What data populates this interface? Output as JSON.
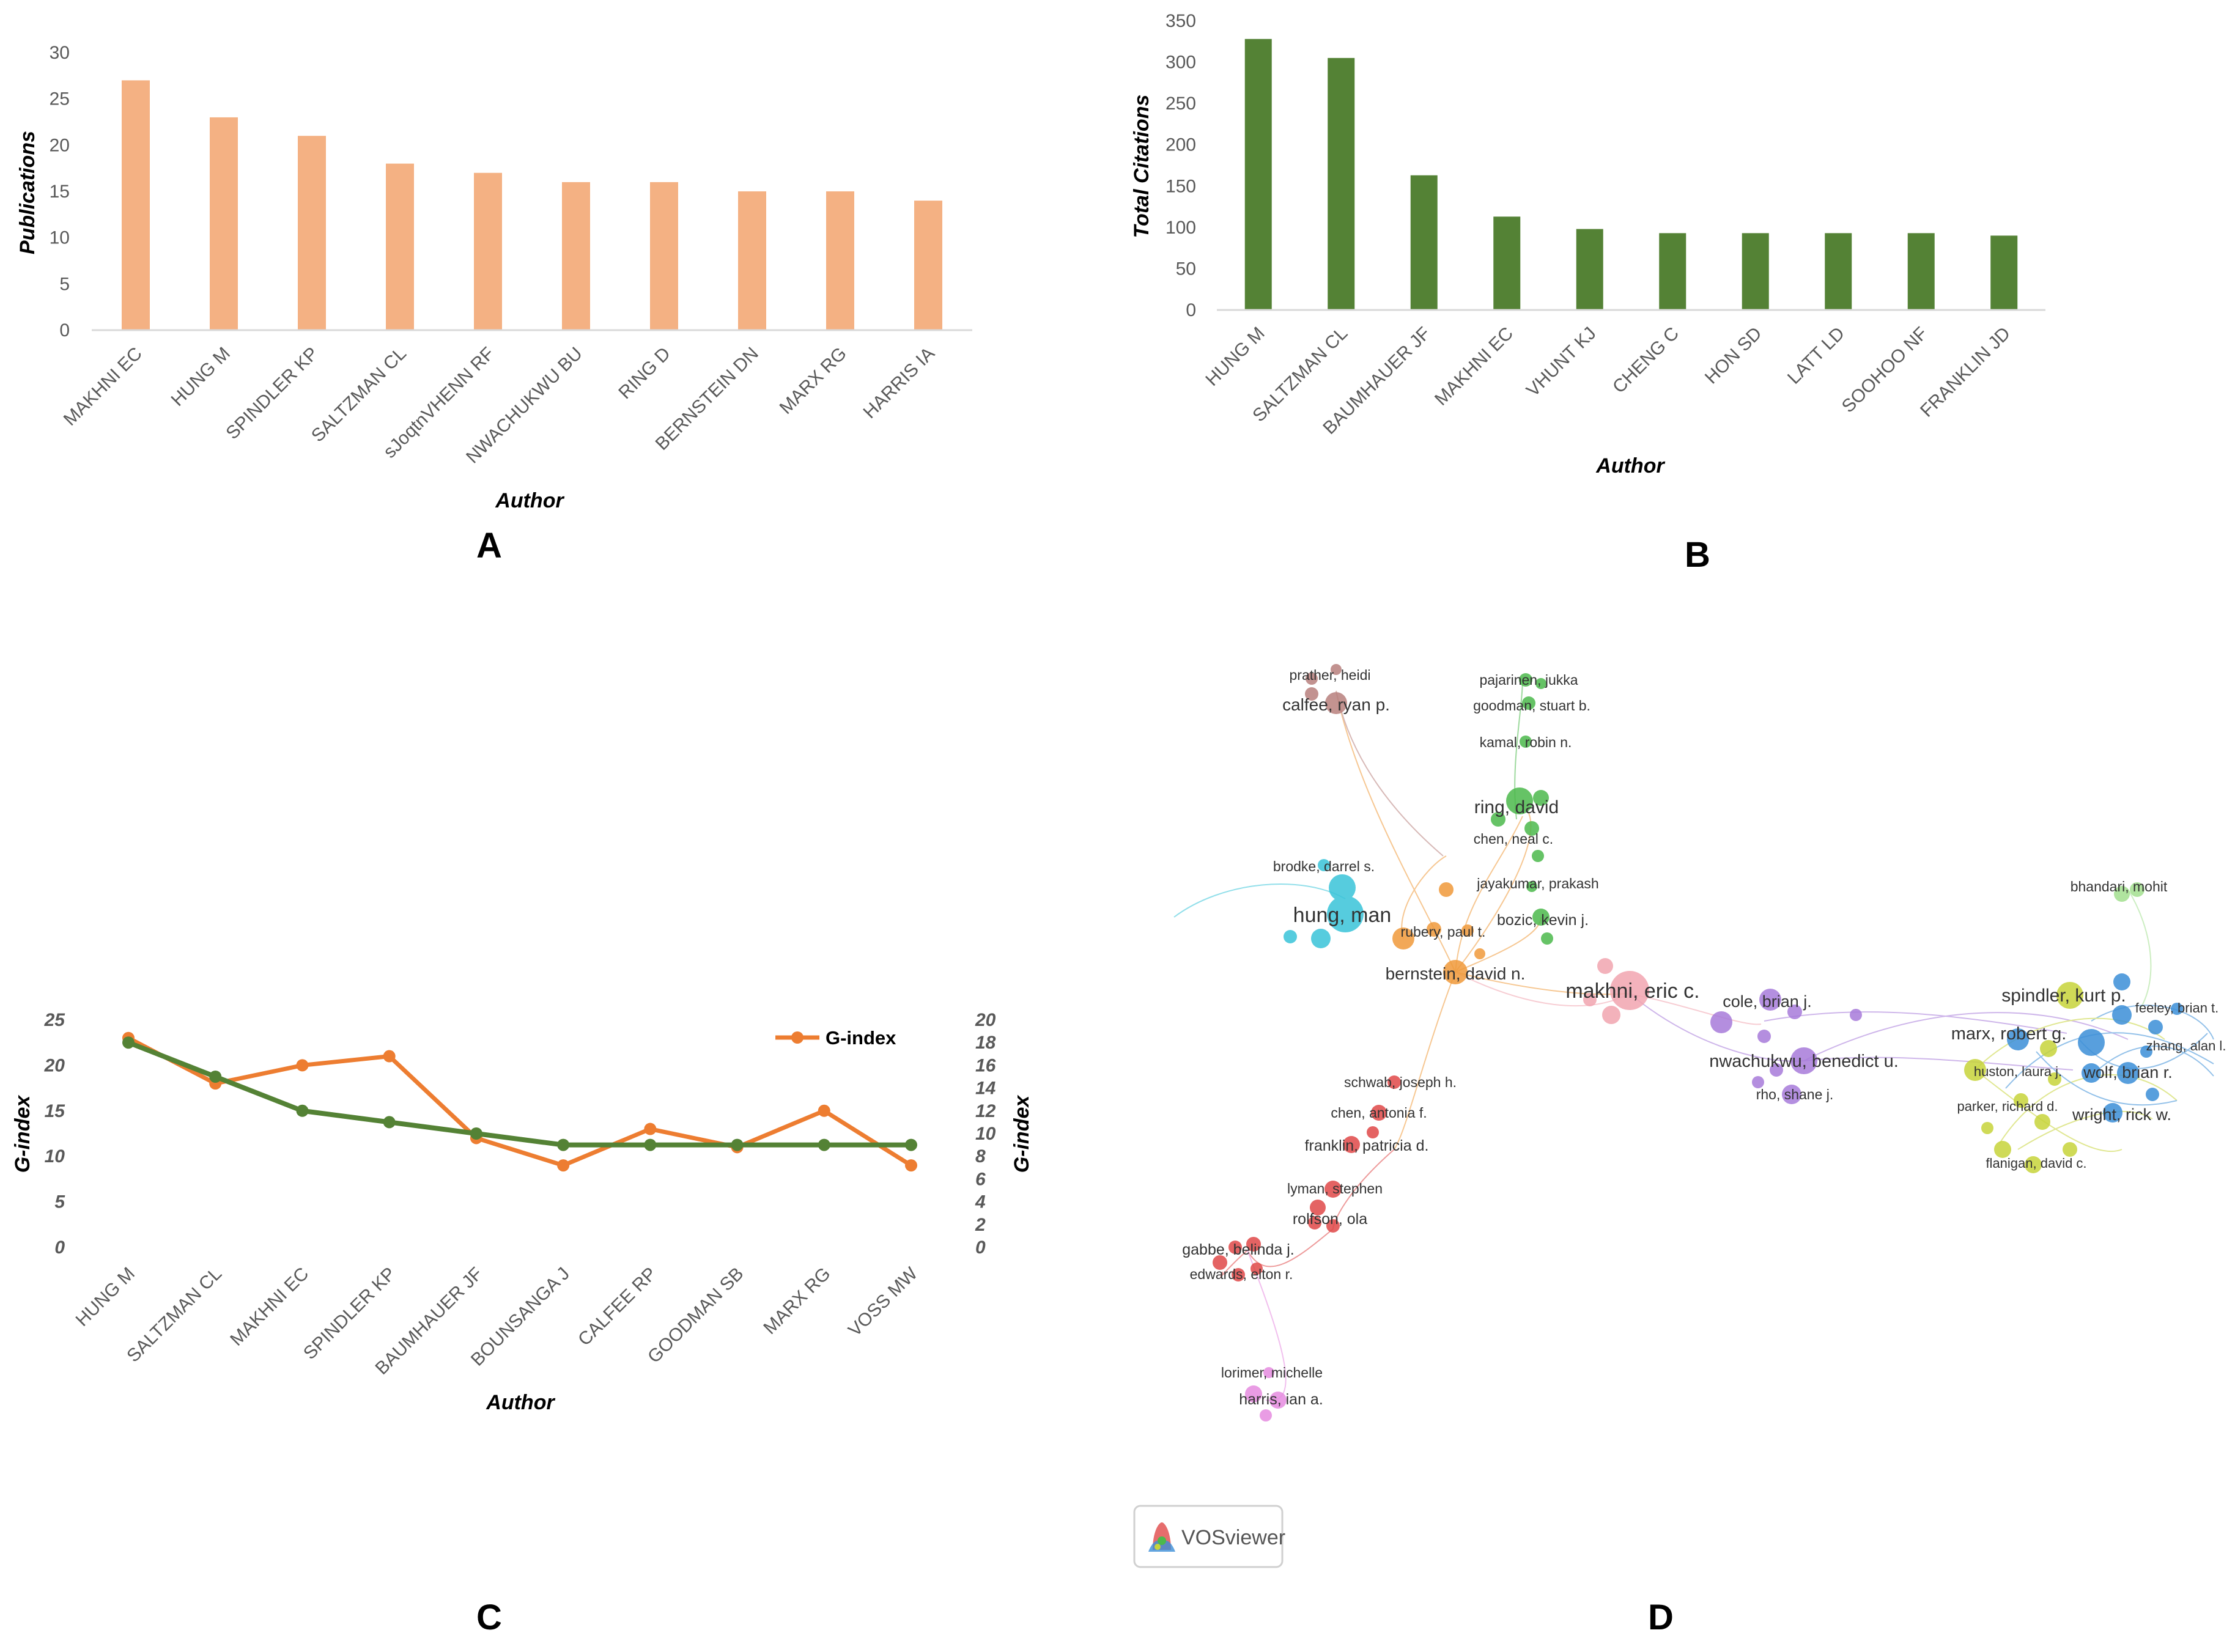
{
  "chart_data": [
    {
      "id": "A",
      "type": "bar",
      "panel_label": "A",
      "title": "",
      "xlabel": "Author",
      "ylabel": "Publications",
      "categories": [
        "MAKHNI EC",
        "HUNG M",
        "SPINDLER KP",
        "SALTZMAN CL",
        "sJoqtnVHENN RF",
        "NWACHUKWU BU",
        "RING D",
        "BERNSTEIN DN",
        "MARX RG",
        "HARRIS IA"
      ],
      "values": [
        27,
        23,
        21,
        18,
        17,
        16,
        16,
        15,
        15,
        14
      ],
      "ylim": [
        0,
        30
      ],
      "yticks": [
        "0",
        "5",
        "10",
        "15",
        "20",
        "25",
        "30"
      ],
      "color": "#F4B183",
      "grid": false
    },
    {
      "id": "B",
      "type": "bar",
      "panel_label": "B",
      "title": "",
      "xlabel": "Author",
      "ylabel": "Total Citations",
      "categories": [
        "HUNG M",
        "SALTZMAN CL",
        "BAUMHAUER JF",
        "MAKHNI EC",
        "VHUNT KJ",
        "CHENG C",
        "HON SD",
        "LATT LD",
        "SOOHOO NF",
        "FRANKLIN JD"
      ],
      "values": [
        328,
        305,
        163,
        113,
        98,
        93,
        93,
        93,
        93,
        90
      ],
      "ylim": [
        0,
        350
      ],
      "yticks": [
        "0",
        "50",
        "100",
        "150",
        "200",
        "250",
        "300",
        "350"
      ],
      "color": "#548235",
      "grid": false
    },
    {
      "id": "C",
      "type": "line",
      "panel_label": "C",
      "title": "",
      "xlabel": "Author",
      "ylabel": "G-index",
      "y2label": "G-index",
      "categories": [
        "HUNG M",
        "SALTZMAN CL",
        "MAKHNI EC",
        "SPINDLER KP",
        "BAUMHAUER JF",
        "BOUNSANGA J",
        "CALFEE RP",
        "GOODMAN SB",
        "MARX RG",
        "VOSS MW"
      ],
      "ylim": [
        0,
        25
      ],
      "y2lim": [
        0,
        20
      ],
      "yticks": [
        "0",
        "5",
        "10",
        "15",
        "20",
        "25"
      ],
      "y2ticks": [
        "0",
        "2",
        "4",
        "6",
        "8",
        "10",
        "12",
        "14",
        "16",
        "18",
        "20"
      ],
      "legend": "G-index",
      "legend_position": "top-right",
      "series": [
        {
          "name": "G-index",
          "axis": "left",
          "color": "#ED7D31",
          "values": [
            23,
            18,
            20,
            21,
            12,
            9,
            13,
            11,
            15,
            9
          ]
        },
        {
          "name": "",
          "axis": "right",
          "color": "#548235",
          "values": [
            18,
            15,
            12,
            11,
            10,
            9,
            9,
            9,
            9,
            9
          ]
        }
      ]
    },
    {
      "id": "D",
      "type": "network",
      "panel_label": "D",
      "watermark": "VOSviewer",
      "clusters": [
        {
          "name": "brown",
          "color": "#B8807D"
        },
        {
          "name": "green",
          "color": "#4CB94C"
        },
        {
          "name": "cyan",
          "color": "#39C4D9"
        },
        {
          "name": "orange",
          "color": "#F09A3A"
        },
        {
          "name": "pink",
          "color": "#F2A5B0"
        },
        {
          "name": "purple",
          "color": "#A77BDA"
        },
        {
          "name": "lightgreen",
          "color": "#A3E08F"
        },
        {
          "name": "yellow",
          "color": "#C7D43A"
        },
        {
          "name": "blue",
          "color": "#3C8FD8"
        },
        {
          "name": "red",
          "color": "#E04848"
        },
        {
          "name": "magenta",
          "color": "#E68BE0"
        }
      ],
      "labels": [
        {
          "text": "prather, heidi",
          "cluster": "brown",
          "size": "small"
        },
        {
          "text": "calfee, ryan p.",
          "cluster": "brown",
          "size": "medium"
        },
        {
          "text": "pajarinen, jukka",
          "cluster": "green",
          "size": "small"
        },
        {
          "text": "goodman, stuart b.",
          "cluster": "green",
          "size": "small"
        },
        {
          "text": "kamal, robin n.",
          "cluster": "green",
          "size": "small"
        },
        {
          "text": "ring, david",
          "cluster": "green",
          "size": "medium"
        },
        {
          "text": "chen, neal c.",
          "cluster": "green",
          "size": "small"
        },
        {
          "text": "jayakumar, prakash",
          "cluster": "green",
          "size": "small"
        },
        {
          "text": "bozic, kevin j.",
          "cluster": "green",
          "size": "small"
        },
        {
          "text": "brodke, darrel s.",
          "cluster": "cyan",
          "size": "small"
        },
        {
          "text": "hung, man",
          "cluster": "cyan",
          "size": "large"
        },
        {
          "text": "rubery, paul t.",
          "cluster": "orange",
          "size": "small"
        },
        {
          "text": "bernstein, david n.",
          "cluster": "orange",
          "size": "medium"
        },
        {
          "text": "makhni, eric c.",
          "cluster": "pink",
          "size": "large"
        },
        {
          "text": "cole, brian j.",
          "cluster": "purple",
          "size": "medium"
        },
        {
          "text": "nwachukwu, benedict u.",
          "cluster": "purple",
          "size": "medium"
        },
        {
          "text": "rho, shane j.",
          "cluster": "purple",
          "size": "small"
        },
        {
          "text": "bhandari, mohit",
          "cluster": "lightgreen",
          "size": "small"
        },
        {
          "text": "spindler, kurt p.",
          "cluster": "yellow",
          "size": "large"
        },
        {
          "text": "feeley, brian t.",
          "cluster": "blue",
          "size": "small"
        },
        {
          "text": "marx, robert g.",
          "cluster": "blue",
          "size": "medium"
        },
        {
          "text": "zhang, alan l.",
          "cluster": "blue",
          "size": "small"
        },
        {
          "text": "huston, laura j.",
          "cluster": "yellow",
          "size": "small"
        },
        {
          "text": "wolf, brian r.",
          "cluster": "blue",
          "size": "medium"
        },
        {
          "text": "parker, richard d.",
          "cluster": "yellow",
          "size": "small"
        },
        {
          "text": "wright, rick w.",
          "cluster": "blue",
          "size": "medium"
        },
        {
          "text": "flanigan, david c.",
          "cluster": "yellow",
          "size": "small"
        },
        {
          "text": "schwab, joseph h.",
          "cluster": "red",
          "size": "small"
        },
        {
          "text": "chen, antonia f.",
          "cluster": "red",
          "size": "small"
        },
        {
          "text": "franklin, patricia d.",
          "cluster": "red",
          "size": "medium"
        },
        {
          "text": "lyman, stephen",
          "cluster": "red",
          "size": "small"
        },
        {
          "text": "rolfson, ola",
          "cluster": "red",
          "size": "medium"
        },
        {
          "text": "gabbe, belinda j.",
          "cluster": "red",
          "size": "medium"
        },
        {
          "text": "edwards, elton r.",
          "cluster": "red",
          "size": "small"
        },
        {
          "text": "lorimer, michelle",
          "cluster": "magenta",
          "size": "small"
        },
        {
          "text": "harris, ian a.",
          "cluster": "magenta",
          "size": "medium"
        }
      ]
    }
  ]
}
